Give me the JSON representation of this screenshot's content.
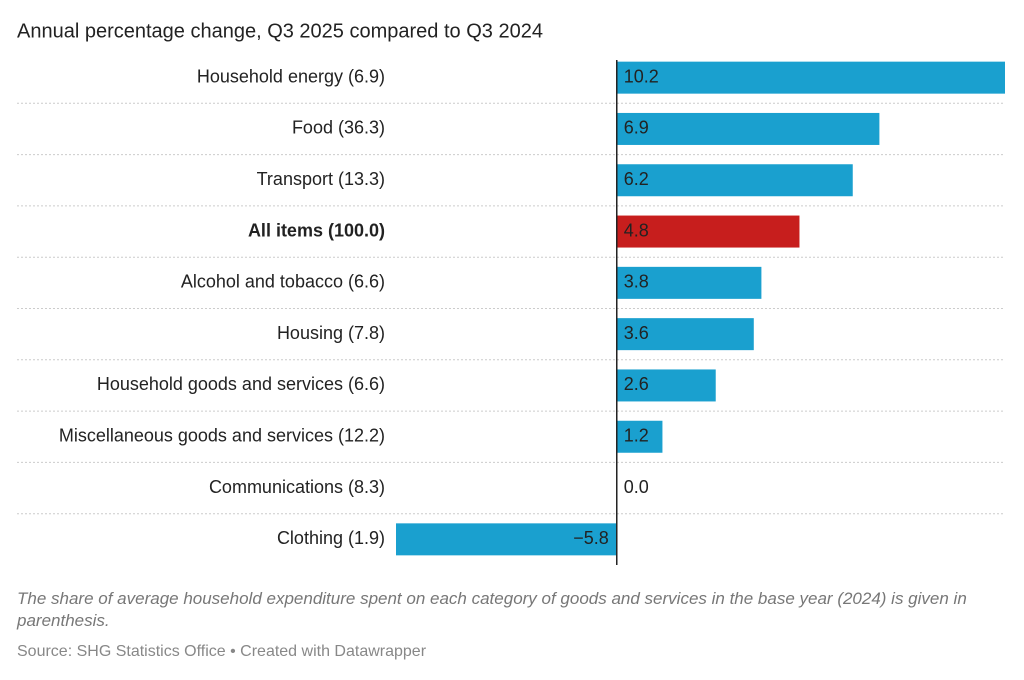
{
  "chart_data": {
    "type": "bar",
    "orientation": "horizontal",
    "title": "Annual percentage change, Q3 2025 compared to Q3 2024",
    "categories": [
      "Household energy (6.9)",
      "Food (36.3)",
      "Transport (13.3)",
      "All items (100.0)",
      "Alcohol and tobacco (6.6)",
      "Housing (7.8)",
      "Household goods and services (6.6)",
      "Miscellaneous goods and services (12.2)",
      "Communications (8.3)",
      "Clothing (1.9)"
    ],
    "values": [
      10.2,
      6.9,
      6.2,
      4.8,
      3.8,
      3.6,
      2.6,
      1.2,
      0,
      -5.8
    ],
    "value_labels": [
      "10.2",
      "6.9",
      "6.2",
      "4.8",
      "3.8",
      "3.6",
      "2.6",
      "1.2",
      "0.0",
      "−5.8"
    ],
    "color": "#1aa0cf",
    "highlight": "All items (100.0)",
    "highlight_color": "#c71e1d",
    "xlim": [
      -5.8,
      10.2
    ],
    "notes": "The share of average household expenditure spent on each category of goods and services in the base year (2024) is given in parenthesis.",
    "source": "Source: SHG Statistics Office • Created with Datawrapper"
  }
}
